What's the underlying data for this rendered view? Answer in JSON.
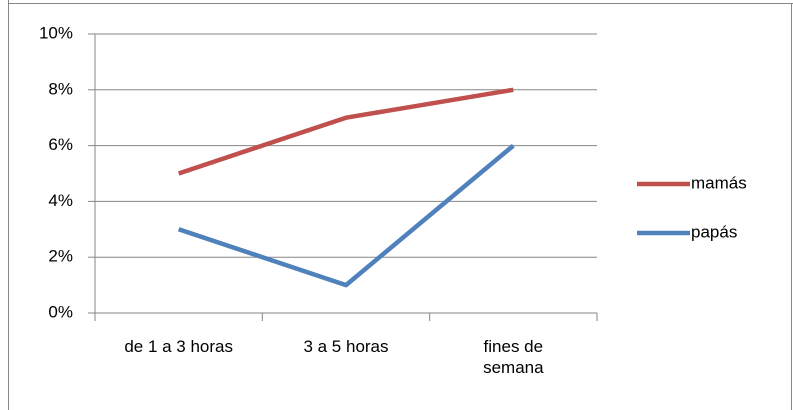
{
  "chart_data": {
    "type": "line",
    "categories": [
      "de 1 a 3 horas",
      "3 a 5 horas",
      "fines de semana"
    ],
    "series": [
      {
        "name": "mamás",
        "color": "#c0504d",
        "values": [
          5,
          7,
          8
        ]
      },
      {
        "name": "papás",
        "color": "#4f81bd",
        "values": [
          3,
          1,
          6
        ]
      }
    ],
    "ylim": [
      0,
      10
    ],
    "yticks": [
      {
        "value": 0,
        "label": "0%"
      },
      {
        "value": 2,
        "label": "2%"
      },
      {
        "value": 4,
        "label": "4%"
      },
      {
        "value": 6,
        "label": "6%"
      },
      {
        "value": 8,
        "label": "8%"
      },
      {
        "value": 10,
        "label": "10%"
      }
    ],
    "grid": true,
    "legend": "right"
  }
}
